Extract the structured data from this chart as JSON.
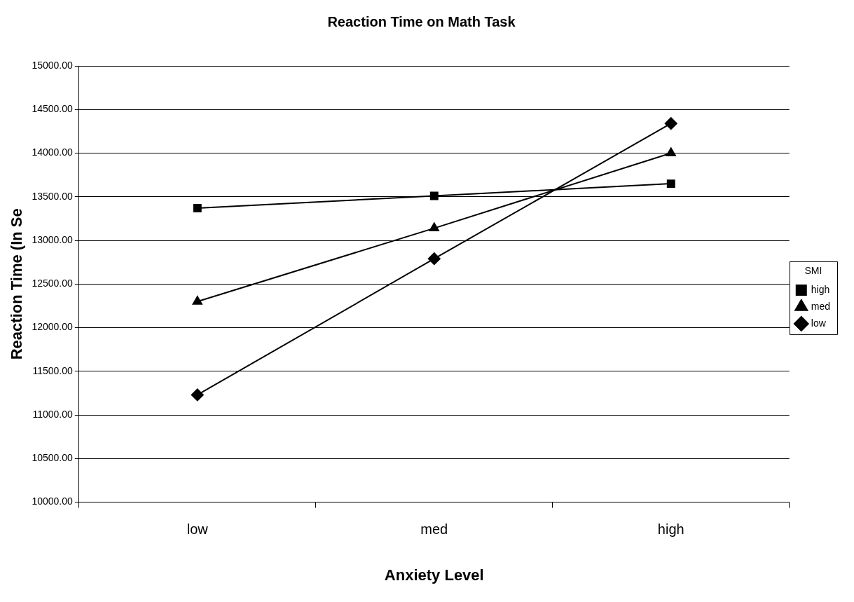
{
  "chart_data": {
    "type": "line",
    "title": "Reaction Time on Math Task",
    "xlabel": "Anxiety Level",
    "ylabel": "Reaction Time (In Se",
    "legend_title": "SMI",
    "categories": [
      "low",
      "med",
      "high"
    ],
    "series": [
      {
        "name": "high",
        "color": "#000000",
        "marker": "square",
        "values": [
          13370,
          13510,
          13650
        ]
      },
      {
        "name": "med",
        "color": "#000000",
        "marker": "triangle",
        "values": [
          12300,
          13140,
          14000
        ]
      },
      {
        "name": "low",
        "color": "#000000",
        "marker": "diamond",
        "values": [
          11230,
          12790,
          14340
        ]
      }
    ],
    "ylim": [
      10000,
      15000
    ],
    "yticks": [
      {
        "value": 10000,
        "label": "10000.00"
      },
      {
        "value": 10500,
        "label": "10500.00"
      },
      {
        "value": 11000,
        "label": "11000.00"
      },
      {
        "value": 11500,
        "label": "11500.00"
      },
      {
        "value": 12000,
        "label": "12000.00"
      },
      {
        "value": 12500,
        "label": "12500.00"
      },
      {
        "value": 13000,
        "label": "13000.00"
      },
      {
        "value": 13500,
        "label": "13500.00"
      },
      {
        "value": 14000,
        "label": "14000.00"
      },
      {
        "value": 14500,
        "label": "14500.00"
      },
      {
        "value": 15000,
        "label": "15000.00"
      }
    ],
    "grid": "y",
    "legend": "right",
    "line_style": "solid"
  }
}
